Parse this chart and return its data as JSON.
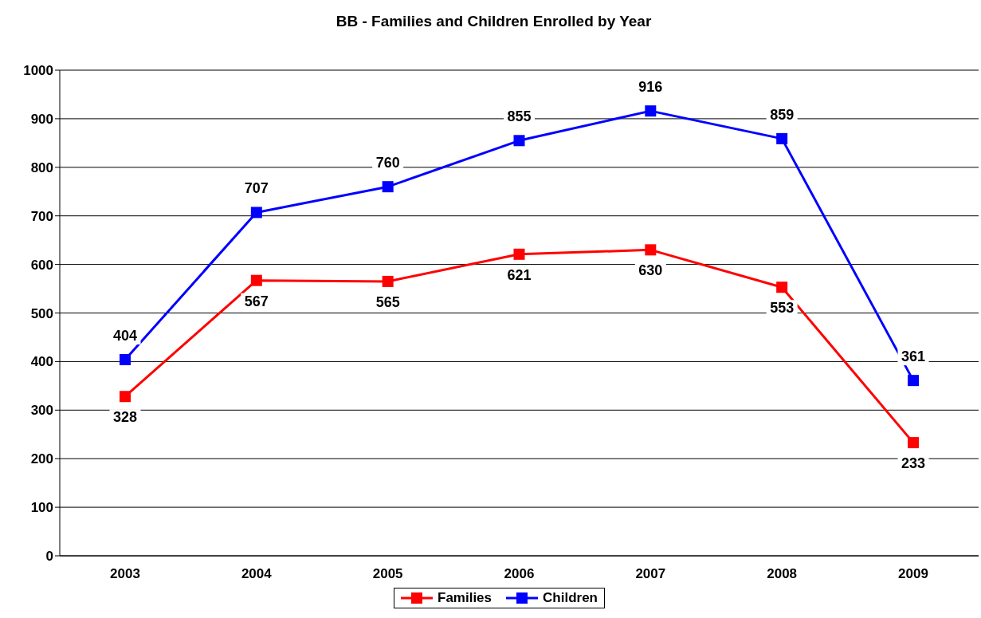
{
  "chart_data": {
    "type": "line",
    "title": "BB - Families and Children Enrolled by Year",
    "categories": [
      "2003",
      "2004",
      "2005",
      "2006",
      "2007",
      "2008",
      "2009"
    ],
    "series": [
      {
        "name": "Families",
        "color": "#ff0000",
        "values": [
          328,
          567,
          565,
          621,
          630,
          553,
          233
        ]
      },
      {
        "name": "Children",
        "color": "#0000ff",
        "values": [
          404,
          707,
          760,
          855,
          916,
          859,
          361
        ]
      }
    ],
    "ylim": [
      0,
      1000
    ],
    "yticks": [
      0,
      100,
      200,
      300,
      400,
      500,
      600,
      700,
      800,
      900,
      1000
    ],
    "grid": "y",
    "legend": "bottom",
    "marker": "square",
    "line_style": "solid",
    "data_labels": true
  }
}
